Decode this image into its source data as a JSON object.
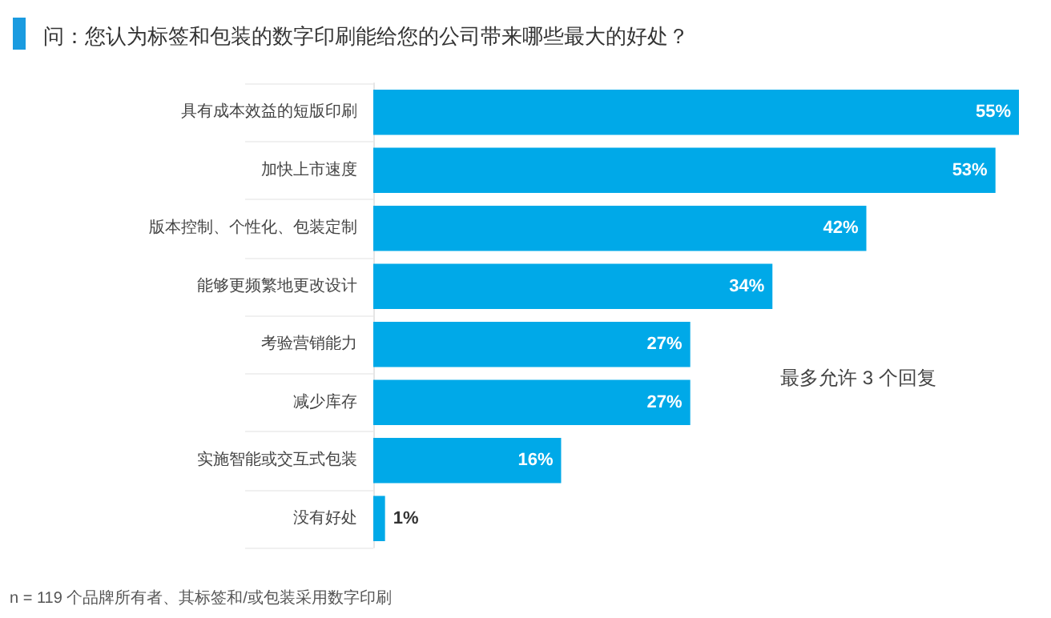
{
  "chart_data": {
    "type": "bar",
    "orientation": "horizontal",
    "title": "问：您认为标签和包装的数字印刷能给您的公司带来哪些最大的好处？",
    "categories": [
      "具有成本效益的短版印刷",
      "加快上市速度",
      "版本控制、个性化、包装定制",
      "能够更频繁地更改设计",
      "考验营销能力",
      "减少库存",
      "实施智能或交互式包装",
      "没有好处"
    ],
    "values": [
      55,
      53,
      42,
      34,
      27,
      27,
      16,
      1
    ],
    "value_labels": [
      "55%",
      "53%",
      "42%",
      "34%",
      "27%",
      "27%",
      "16%",
      "1%"
    ],
    "color": "#00a9e8",
    "annotations": [
      "最多允许 3 个回复",
      "n = 119 个品牌所有者、其标签和/或包装采用数字印刷"
    ]
  }
}
